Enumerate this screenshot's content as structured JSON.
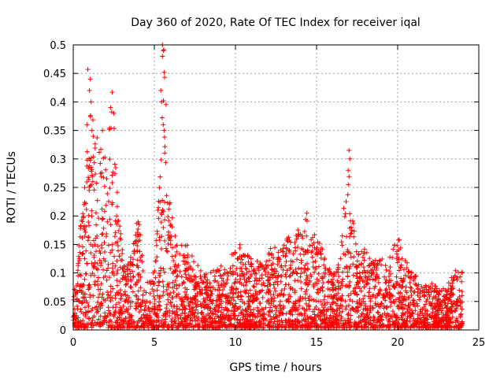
{
  "chart_data": {
    "type": "scatter",
    "title": "Day 360 of 2020, Rate Of TEC Index for receiver iqal",
    "xlabel": "GPS time / hours",
    "ylabel": "ROTI / TECUs",
    "xlim": [
      0,
      25
    ],
    "ylim": [
      0,
      0.5
    ],
    "xticks": [
      0,
      5,
      10,
      15,
      20,
      25
    ],
    "yticks": [
      0,
      0.05,
      0.1,
      0.15,
      0.2,
      0.25,
      0.3,
      0.35,
      0.4,
      0.45,
      0.5
    ],
    "xtick_labels": [
      "0",
      "5",
      "10",
      "15",
      "20",
      "25"
    ],
    "ytick_labels": [
      "0",
      "0.05",
      "0.1",
      "0.15",
      "0.2",
      "0.25",
      "0.3",
      "0.35",
      "0.4",
      "0.45",
      "0.5"
    ],
    "grid": true,
    "marker": "plus",
    "marker_color": "#ff0000",
    "envelope": {
      "x": [
        0.0,
        0.3,
        0.5,
        0.8,
        1.0,
        1.3,
        1.6,
        2.0,
        2.4,
        2.8,
        3.2,
        3.6,
        4.0,
        4.5,
        5.0,
        5.3,
        5.6,
        5.9,
        6.2,
        6.6,
        7.0,
        7.4,
        8.0,
        8.6,
        9.2,
        9.8,
        10.3,
        10.8,
        11.3,
        11.8,
        12.3,
        12.8,
        13.3,
        13.8,
        14.3,
        14.6,
        15.0,
        15.5,
        16.0,
        16.5,
        16.9,
        17.2,
        17.6,
        18.0,
        18.5,
        19.0,
        19.5,
        20.0,
        20.5,
        21.0,
        21.5,
        22.0,
        22.5,
        23.0,
        23.5,
        24.0
      ],
      "y": [
        0.05,
        0.13,
        0.2,
        0.27,
        0.45,
        0.35,
        0.33,
        0.3,
        0.42,
        0.2,
        0.1,
        0.13,
        0.2,
        0.08,
        0.1,
        0.25,
        0.5,
        0.3,
        0.17,
        0.15,
        0.15,
        0.12,
        0.1,
        0.1,
        0.11,
        0.13,
        0.15,
        0.13,
        0.12,
        0.11,
        0.15,
        0.16,
        0.16,
        0.17,
        0.21,
        0.17,
        0.16,
        0.13,
        0.1,
        0.13,
        0.32,
        0.2,
        0.13,
        0.14,
        0.12,
        0.12,
        0.13,
        0.16,
        0.12,
        0.1,
        0.08,
        0.08,
        0.07,
        0.07,
        0.1,
        0.1
      ]
    },
    "peaks": [
      {
        "x": 0.9,
        "y": 0.457
      },
      {
        "x": 1.05,
        "y": 0.44
      },
      {
        "x": 1.0,
        "y": 0.42
      },
      {
        "x": 1.1,
        "y": 0.4
      },
      {
        "x": 0.85,
        "y": 0.36
      },
      {
        "x": 1.15,
        "y": 0.35
      },
      {
        "x": 1.8,
        "y": 0.35
      },
      {
        "x": 2.4,
        "y": 0.417
      },
      {
        "x": 2.3,
        "y": 0.39
      },
      {
        "x": 2.5,
        "y": 0.38
      },
      {
        "x": 5.5,
        "y": 0.5
      },
      {
        "x": 5.55,
        "y": 0.49
      },
      {
        "x": 5.5,
        "y": 0.48
      },
      {
        "x": 5.4,
        "y": 0.42
      },
      {
        "x": 5.45,
        "y": 0.4
      },
      {
        "x": 5.55,
        "y": 0.36
      },
      {
        "x": 5.6,
        "y": 0.35
      },
      {
        "x": 17.0,
        "y": 0.315
      },
      {
        "x": 17.05,
        "y": 0.3
      },
      {
        "x": 16.95,
        "y": 0.28
      },
      {
        "x": 14.4,
        "y": 0.205
      },
      {
        "x": 20.1,
        "y": 0.158
      }
    ]
  }
}
